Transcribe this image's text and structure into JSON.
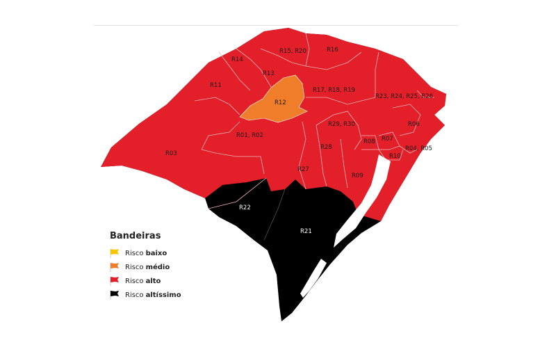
{
  "legend": {
    "title": "Bandeiras",
    "items": [
      {
        "prefix": "Risco",
        "level": "baixo",
        "color": "#f7c600",
        "icon": "flag-icon"
      },
      {
        "prefix": "Risco",
        "level": "médio",
        "color": "#ef7d2a",
        "icon": "flag-icon"
      },
      {
        "prefix": "Risco",
        "level": "alto",
        "color": "#e3202a",
        "icon": "flag-icon"
      },
      {
        "prefix": "Risco",
        "level": "altíssimo",
        "color": "#000000",
        "icon": "flag-icon"
      }
    ]
  },
  "regions": [
    {
      "label": "R15, R20",
      "risk": "alto"
    },
    {
      "label": "R16",
      "risk": "alto"
    },
    {
      "label": "R14",
      "risk": "alto"
    },
    {
      "label": "R13",
      "risk": "alto"
    },
    {
      "label": "R11",
      "risk": "alto"
    },
    {
      "label": "R12",
      "risk": "médio"
    },
    {
      "label": "R17, R18, R19",
      "risk": "alto"
    },
    {
      "label": "R23, R24, R25, R26",
      "risk": "alto"
    },
    {
      "label": "R06",
      "risk": "alto"
    },
    {
      "label": "R29, R30",
      "risk": "alto"
    },
    {
      "label": "R01, R02",
      "risk": "alto"
    },
    {
      "label": "R03",
      "risk": "alto"
    },
    {
      "label": "R08",
      "risk": "alto"
    },
    {
      "label": "R07",
      "risk": "alto"
    },
    {
      "label": "R28",
      "risk": "alto"
    },
    {
      "label": "R04, R05",
      "risk": "alto"
    },
    {
      "label": "R10",
      "risk": "alto"
    },
    {
      "label": "R27",
      "risk": "alto"
    },
    {
      "label": "R09",
      "risk": "alto"
    },
    {
      "label": "R22",
      "risk": "altíssimo"
    },
    {
      "label": "R21",
      "risk": "altíssimo"
    }
  ]
}
